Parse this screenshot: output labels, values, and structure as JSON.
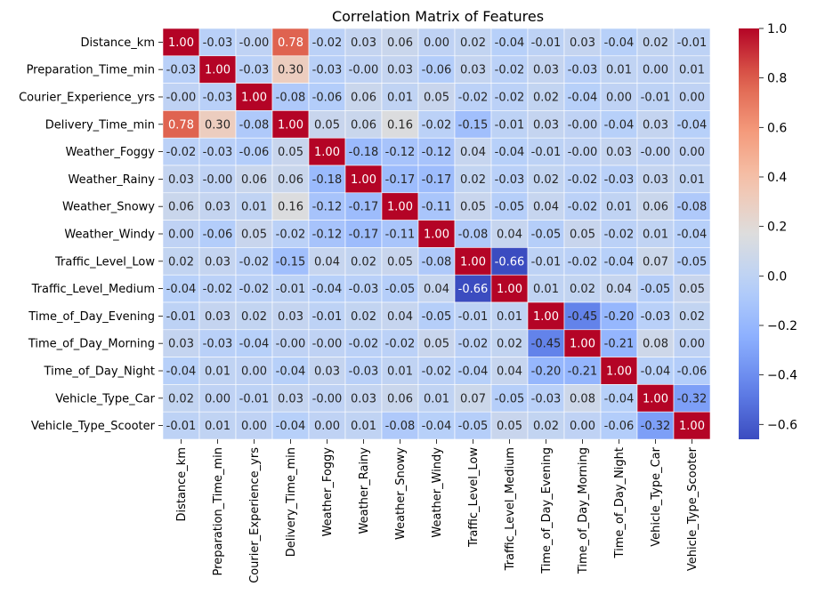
{
  "chart_data": {
    "type": "heatmap",
    "title": "Correlation Matrix of Features",
    "xlabel": "",
    "ylabel": "",
    "labels": [
      "Distance_km",
      "Preparation_Time_min",
      "Courier_Experience_yrs",
      "Delivery_Time_min",
      "Weather_Foggy",
      "Weather_Rainy",
      "Weather_Snowy",
      "Weather_Windy",
      "Traffic_Level_Low",
      "Traffic_Level_Medium",
      "Time_of_Day_Evening",
      "Time_of_Day_Morning",
      "Time_of_Day_Night",
      "Vehicle_Type_Car",
      "Vehicle_Type_Scooter"
    ],
    "matrix": [
      [
        1.0,
        -0.03,
        -0.0,
        0.78,
        -0.02,
        0.03,
        0.06,
        0.0,
        0.02,
        -0.04,
        -0.01,
        0.03,
        -0.04,
        0.02,
        -0.01
      ],
      [
        -0.03,
        1.0,
        -0.03,
        0.3,
        -0.03,
        -0.0,
        0.03,
        -0.06,
        0.03,
        -0.02,
        0.03,
        -0.03,
        0.01,
        0.0,
        0.01
      ],
      [
        -0.0,
        -0.03,
        1.0,
        -0.08,
        -0.06,
        0.06,
        0.01,
        0.05,
        -0.02,
        -0.02,
        0.02,
        -0.04,
        0.0,
        -0.01,
        0.0
      ],
      [
        0.78,
        0.3,
        -0.08,
        1.0,
        0.05,
        0.06,
        0.16,
        -0.02,
        -0.15,
        -0.01,
        0.03,
        -0.0,
        -0.04,
        0.03,
        -0.04
      ],
      [
        -0.02,
        -0.03,
        -0.06,
        0.05,
        1.0,
        -0.18,
        -0.12,
        -0.12,
        0.04,
        -0.04,
        -0.01,
        -0.0,
        0.03,
        -0.0,
        0.0
      ],
      [
        0.03,
        -0.0,
        0.06,
        0.06,
        -0.18,
        1.0,
        -0.17,
        -0.17,
        0.02,
        -0.03,
        0.02,
        -0.02,
        -0.03,
        0.03,
        0.01
      ],
      [
        0.06,
        0.03,
        0.01,
        0.16,
        -0.12,
        -0.17,
        1.0,
        -0.11,
        0.05,
        -0.05,
        0.04,
        -0.02,
        0.01,
        0.06,
        -0.08
      ],
      [
        0.0,
        -0.06,
        0.05,
        -0.02,
        -0.12,
        -0.17,
        -0.11,
        1.0,
        -0.08,
        0.04,
        -0.05,
        0.05,
        -0.02,
        0.01,
        -0.04
      ],
      [
        0.02,
        0.03,
        -0.02,
        -0.15,
        0.04,
        0.02,
        0.05,
        -0.08,
        1.0,
        -0.66,
        -0.01,
        -0.02,
        -0.04,
        0.07,
        -0.05
      ],
      [
        -0.04,
        -0.02,
        -0.02,
        -0.01,
        -0.04,
        -0.03,
        -0.05,
        0.04,
        -0.66,
        1.0,
        0.01,
        0.02,
        0.04,
        -0.05,
        0.05
      ],
      [
        -0.01,
        0.03,
        0.02,
        0.03,
        -0.01,
        0.02,
        0.04,
        -0.05,
        -0.01,
        0.01,
        1.0,
        -0.45,
        -0.2,
        -0.03,
        0.02
      ],
      [
        0.03,
        -0.03,
        -0.04,
        -0.0,
        -0.0,
        -0.02,
        -0.02,
        0.05,
        -0.02,
        0.02,
        -0.45,
        1.0,
        -0.21,
        0.08,
        0.0
      ],
      [
        -0.04,
        0.01,
        0.0,
        -0.04,
        0.03,
        -0.03,
        0.01,
        -0.02,
        -0.04,
        0.04,
        -0.2,
        -0.21,
        1.0,
        -0.04,
        -0.06
      ],
      [
        0.02,
        0.0,
        -0.01,
        0.03,
        -0.0,
        0.03,
        0.06,
        0.01,
        0.07,
        -0.05,
        -0.03,
        0.08,
        -0.04,
        1.0,
        -0.32
      ],
      [
        -0.01,
        0.01,
        0.0,
        -0.04,
        0.0,
        0.01,
        -0.08,
        -0.04,
        -0.05,
        0.05,
        0.02,
        0.0,
        -0.06,
        -0.32,
        1.0
      ]
    ],
    "colormap": "coolwarm",
    "color_range": [
      -0.66,
      1.0
    ],
    "colorbar_ticks": [
      1.0,
      0.8,
      0.6,
      0.4,
      0.2,
      0.0,
      -0.2,
      -0.4,
      -0.6
    ],
    "colorbar_tick_labels": [
      "1.0",
      "0.8",
      "0.6",
      "0.4",
      "0.2",
      "0.0",
      "−0.2",
      "−0.4",
      "−0.6"
    ],
    "annotations": true,
    "grid": false
  }
}
